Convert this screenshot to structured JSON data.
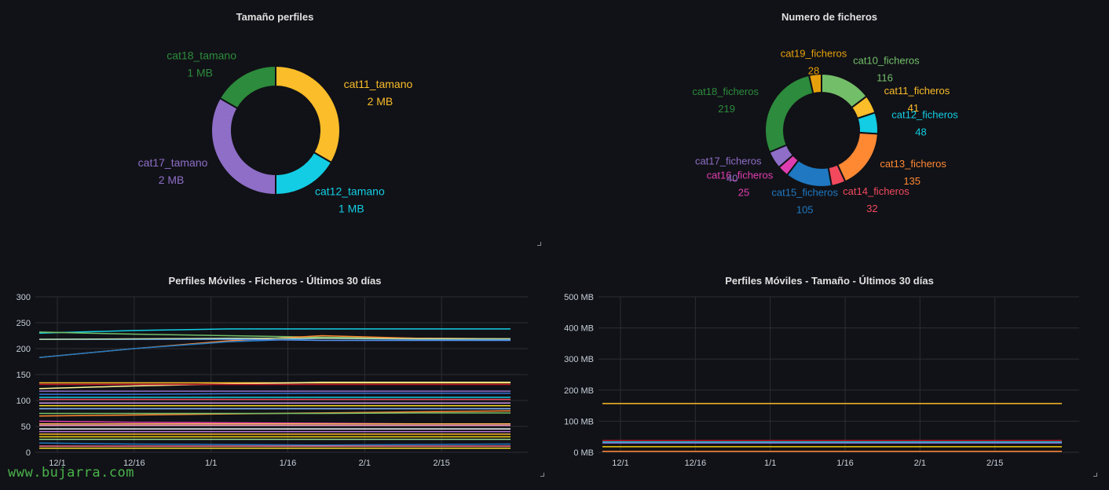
{
  "panels": {
    "p1": {
      "title": "Tamaño perfiles",
      "chart_data": {
        "type": "pie",
        "title": "Tamaño perfiles",
        "slices": [
          {
            "name": "cat11_tamano",
            "label": "2 MB",
            "value": 2,
            "color": "#fbbd29"
          },
          {
            "name": "cat12_tamano",
            "label": "1 MB",
            "value": 1,
            "color": "#12cde3"
          },
          {
            "name": "cat17_tamano",
            "label": "2 MB",
            "value": 2,
            "color": "#8e6ec7"
          },
          {
            "name": "cat18_tamano",
            "label": "1 MB",
            "value": 1,
            "color": "#2c8b3c"
          }
        ]
      }
    },
    "p2": {
      "title": "Numero de ficheros",
      "chart_data": {
        "type": "pie",
        "title": "Numero de ficheros",
        "slices": [
          {
            "name": "cat10_ficheros",
            "label": "116",
            "value": 116,
            "color": "#73bf69"
          },
          {
            "name": "cat11_ficheros",
            "label": "41",
            "value": 41,
            "color": "#fbbd29"
          },
          {
            "name": "cat12_ficheros",
            "label": "48",
            "value": 48,
            "color": "#12cde3"
          },
          {
            "name": "cat13_ficheros",
            "label": "135",
            "value": 135,
            "color": "#ff8833"
          },
          {
            "name": "cat14_ficheros",
            "label": "32",
            "value": 32,
            "color": "#f2495c"
          },
          {
            "name": "cat15_ficheros",
            "label": "105",
            "value": 105,
            "color": "#1f78c1"
          },
          {
            "name": "cat16_ficheros",
            "label": "25",
            "value": 25,
            "color": "#e03eb0"
          },
          {
            "name": "cat17_ficheros",
            "label": "40",
            "value": 40,
            "color": "#8e6ec7"
          },
          {
            "name": "cat18_ficheros",
            "label": "219",
            "value": 219,
            "color": "#2c8b3c"
          },
          {
            "name": "cat19_ficheros",
            "label": "28",
            "value": 28,
            "color": "#e6a00b"
          }
        ]
      }
    },
    "p3": {
      "title": "Perfiles Móviles - Ficheros - Últimos 30 días",
      "chart_data": {
        "type": "line",
        "title": "Perfiles Móviles - Ficheros - Últimos 30 días",
        "x_ticks": [
          "12/1",
          "12/16",
          "1/1",
          "1/16",
          "2/1",
          "2/15"
        ],
        "y_ticks": [
          "0",
          "50",
          "100",
          "150",
          "200",
          "250",
          "300"
        ],
        "ylim": [
          0,
          300
        ],
        "grid": true,
        "series": [
          {
            "color": "#12cde3",
            "values": [
              230,
              235,
              238,
              238,
              238,
              238
            ]
          },
          {
            "color": "#73bf69",
            "values": [
              232,
              228,
              225,
              222,
              220,
              219
            ]
          },
          {
            "color": "#ff8833",
            "values": [
              183,
              200,
              215,
              225,
              220,
              219
            ]
          },
          {
            "color": "#1f78c1",
            "values": [
              183,
              200,
              213,
              220,
              218,
              217
            ]
          },
          {
            "color": "#5794f2",
            "values": [
              218,
              218,
              218,
              216,
              216,
              216
            ]
          },
          {
            "color": "#b8ddaa",
            "values": [
              218,
              219,
              220,
              220,
              219,
              219
            ]
          },
          {
            "color": "#fbbd29",
            "values": [
              134,
              134,
              134,
              134,
              134,
              134
            ]
          },
          {
            "color": "#fff899",
            "values": [
              123,
              128,
              132,
              135,
              135,
              135
            ]
          },
          {
            "color": "#c4162a",
            "values": [
              131,
              131,
              131,
              131,
              131,
              131
            ]
          },
          {
            "color": "#8e6ec7",
            "values": [
              118,
              118,
              118,
              118,
              118,
              118
            ]
          },
          {
            "color": "#3274d9",
            "values": [
              112,
              112,
              113,
              114,
              114,
              114
            ]
          },
          {
            "color": "#12cde3",
            "values": [
              106,
              106,
              106,
              106,
              106,
              106
            ]
          },
          {
            "color": "#f2495c",
            "values": [
              102,
              102,
              102,
              102,
              102,
              102
            ]
          },
          {
            "color": "#ca95e5",
            "values": [
              95,
              95,
              95,
              95,
              95,
              95
            ]
          },
          {
            "color": "#fade2a",
            "values": [
              90,
              90,
              90,
              90,
              90,
              90
            ]
          },
          {
            "color": "#8ab8ff",
            "values": [
              84,
              84,
              84,
              84,
              84,
              84
            ]
          },
          {
            "color": "#ff8833",
            "values": [
              70,
              72,
              74,
              76,
              78,
              80
            ]
          },
          {
            "color": "#73bf69",
            "values": [
              75,
              75,
              75,
              75,
              76,
              76
            ]
          },
          {
            "color": "#e03eb0",
            "values": [
              60,
              58,
              57,
              56,
              55,
              55
            ]
          },
          {
            "color": "#ffb357",
            "values": [
              55,
              55,
              55,
              55,
              55,
              55
            ]
          },
          {
            "color": "#ff99cc",
            "values": [
              52,
              52,
              52,
              52,
              52,
              52
            ]
          },
          {
            "color": "#ffffff",
            "values": [
              45,
              45,
              45,
              45,
              45,
              45
            ]
          },
          {
            "color": "#b877d9",
            "values": [
              40,
              40,
              40,
              40,
              40,
              40
            ]
          },
          {
            "color": "#fbbd29",
            "values": [
              35,
              35,
              35,
              35,
              35,
              35
            ]
          },
          {
            "color": "#f2cc0c",
            "values": [
              30,
              30,
              30,
              30,
              30,
              30
            ]
          },
          {
            "color": "#96d98d",
            "values": [
              25,
              25,
              25,
              25,
              25,
              25
            ]
          },
          {
            "color": "#1f78c1",
            "values": [
              18,
              16,
              15,
              14,
              15,
              16
            ]
          },
          {
            "color": "#ff7383",
            "values": [
              12,
              12,
              12,
              12,
              12,
              12
            ]
          },
          {
            "color": "#fade2a",
            "values": [
              8,
              8,
              8,
              8,
              8,
              8
            ]
          }
        ]
      }
    },
    "p4": {
      "title": "Perfiles Móviles - Tamaño - Últimos 30 días",
      "chart_data": {
        "type": "line",
        "title": "Perfiles Móviles - Tamaño - Últimos 30 días",
        "x_ticks": [
          "12/1",
          "12/16",
          "1/1",
          "1/16",
          "2/1",
          "2/15"
        ],
        "y_ticks": [
          "0 MB",
          "100 MB",
          "200 MB",
          "300 MB",
          "400 MB",
          "500 MB"
        ],
        "ylim": [
          0,
          500
        ],
        "grid": true,
        "series": [
          {
            "color": "#fbbd29",
            "values": [
              157,
              157,
              157,
              157,
              157,
              157
            ]
          },
          {
            "color": "#c4162a",
            "values": [
              38,
              38,
              38,
              38,
              38,
              38
            ]
          },
          {
            "color": "#12cde3",
            "values": [
              33,
              33,
              33,
              33,
              33,
              33
            ]
          },
          {
            "color": "#8e6ec7",
            "values": [
              30,
              30,
              30,
              30,
              30,
              30
            ]
          },
          {
            "color": "#f2cc0c",
            "values": [
              18,
              18,
              18,
              18,
              18,
              18
            ]
          },
          {
            "color": "#ff8833",
            "values": [
              3,
              3,
              3,
              3,
              3,
              3
            ]
          }
        ]
      }
    }
  },
  "watermark": "www.bujarra.com"
}
